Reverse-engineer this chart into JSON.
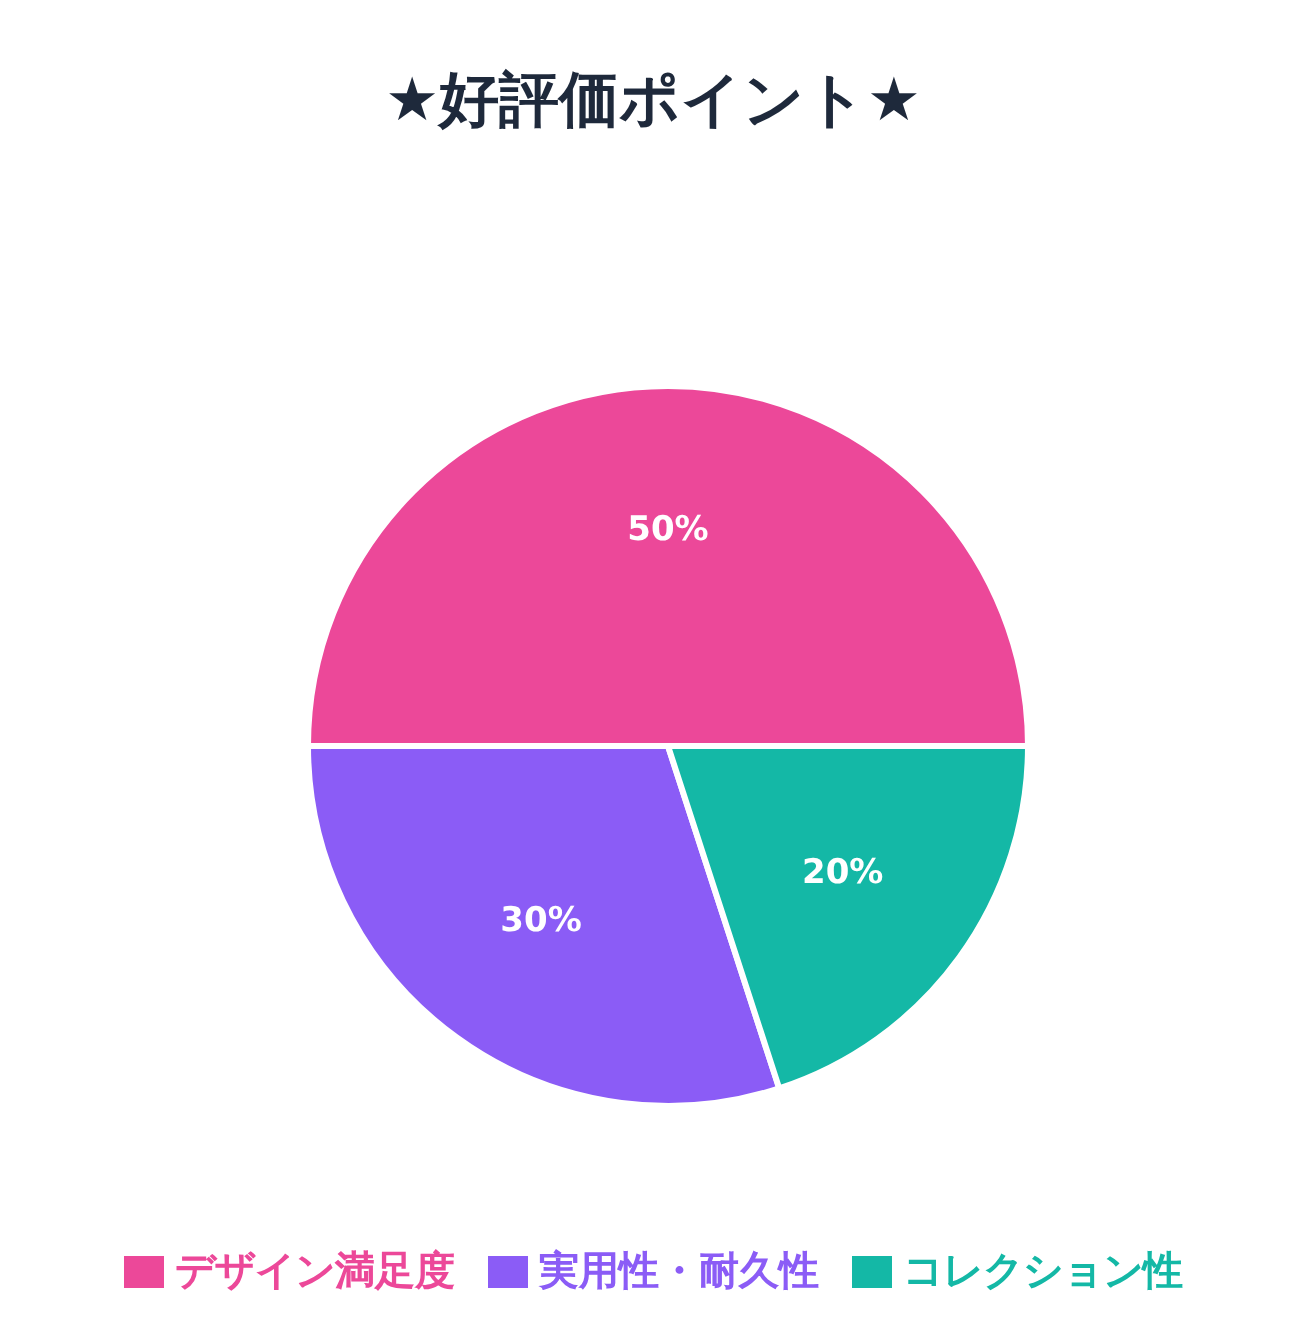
{
  "chart_data": {
    "type": "pie",
    "title": "★好評価ポイント★",
    "categories": [
      "デザイン満足度",
      "実用性・耐久性",
      "コレクション性"
    ],
    "values": [
      50,
      30,
      20
    ],
    "colors": [
      "#ec4899",
      "#8b5cf6",
      "#14b8a6"
    ],
    "value_labels": [
      "50%",
      "30%",
      "20%"
    ],
    "legend": "bottom"
  }
}
